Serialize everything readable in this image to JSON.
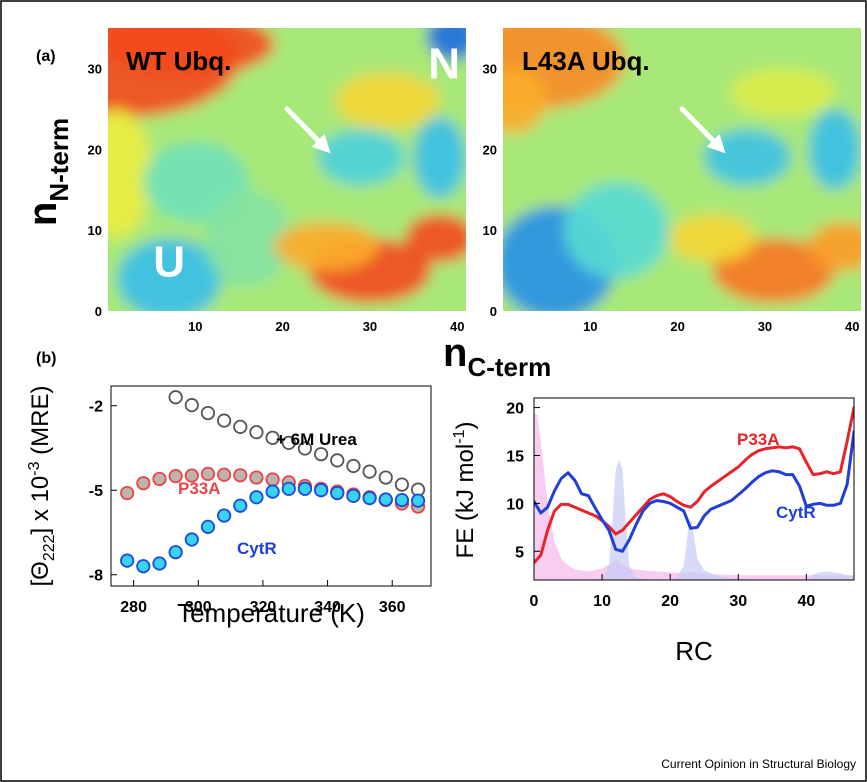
{
  "figure": {
    "credit": "Current Opinion in Structural Biology",
    "panel_a_label": "(a)",
    "panel_b_label": "(b)"
  },
  "chart_data": [
    {
      "id": "wt-map",
      "type": "heatmap",
      "title": "WT Ubq.",
      "xlabel": "n",
      "xlabel_sub": "C-term",
      "ylabel": "n",
      "ylabel_sub": "N-term",
      "x_ticks": [
        10,
        20,
        30,
        40
      ],
      "y_ticks": [
        0,
        10,
        20,
        30
      ],
      "xlim": [
        0,
        41
      ],
      "ylim": [
        0,
        35
      ],
      "annotations": [
        {
          "text": "N",
          "x": 38.5,
          "y": 30.5
        },
        {
          "text": "U",
          "x": 7,
          "y": 6
        }
      ],
      "arrow": {
        "from": [
          20.5,
          25
        ],
        "to": [
          25.5,
          19.5
        ]
      },
      "colormap": [
        "#1e6fe0",
        "#30b6ec",
        "#5cdcd2",
        "#a8e878",
        "#f0ec3a",
        "#fca52a",
        "#f24b1e"
      ],
      "regions": [
        {
          "x": 2,
          "y": 31,
          "sx": 13,
          "sy": 7,
          "v": 1.0
        },
        {
          "x": 9,
          "y": 33,
          "sx": 10,
          "sy": 4,
          "v": 1.0
        },
        {
          "x": 1,
          "y": 17,
          "sx": 4,
          "sy": 8,
          "v": 0.65
        },
        {
          "x": 10,
          "y": 16,
          "sx": 6,
          "sy": 5,
          "v": 0.38
        },
        {
          "x": 7,
          "y": 4,
          "sx": 6,
          "sy": 5,
          "v": 0.2
        },
        {
          "x": 16,
          "y": 9,
          "sx": 5,
          "sy": 6,
          "v": 0.42
        },
        {
          "x": 29,
          "y": 19,
          "sx": 5,
          "sy": 3.5,
          "v": 0.28
        },
        {
          "x": 38,
          "y": 19,
          "sx": 3,
          "sy": 5,
          "v": 0.2
        },
        {
          "x": 39.5,
          "y": 34,
          "sx": 3,
          "sy": 3,
          "v": 0.0
        },
        {
          "x": 30,
          "y": 5,
          "sx": 7,
          "sy": 4,
          "v": 1.0
        },
        {
          "x": 38,
          "y": 9,
          "sx": 4,
          "sy": 3,
          "v": 1.0
        },
        {
          "x": 25,
          "y": 8,
          "sx": 6,
          "sy": 3,
          "v": 0.82
        },
        {
          "x": 32,
          "y": 26,
          "sx": 6,
          "sy": 3.5,
          "v": 0.72
        }
      ]
    },
    {
      "id": "l43a-map",
      "type": "heatmap",
      "title": "L43A Ubq.",
      "x_ticks": [
        10,
        20,
        30,
        40
      ],
      "y_ticks": [
        0,
        10,
        20,
        30
      ],
      "xlim": [
        0,
        41
      ],
      "ylim": [
        0,
        35
      ],
      "arrow": {
        "from": [
          20.5,
          25
        ],
        "to": [
          25.5,
          19.5
        ]
      },
      "colormap": [
        "#1e6fe0",
        "#30b6ec",
        "#5cdcd2",
        "#a8e878",
        "#f0ec3a",
        "#fca52a",
        "#f24b1e"
      ],
      "regions": [
        {
          "x": 4,
          "y": 31,
          "sx": 10,
          "sy": 6,
          "v": 0.88
        },
        {
          "x": 1,
          "y": 26,
          "sx": 4,
          "sy": 4,
          "v": 0.82
        },
        {
          "x": 6,
          "y": 6,
          "sx": 7,
          "sy": 7,
          "v": 0.08
        },
        {
          "x": 13,
          "y": 10,
          "sx": 6,
          "sy": 6,
          "v": 0.32
        },
        {
          "x": 28,
          "y": 19,
          "sx": 5,
          "sy": 3.5,
          "v": 0.22
        },
        {
          "x": 38,
          "y": 20,
          "sx": 3,
          "sy": 5,
          "v": 0.2
        },
        {
          "x": 31,
          "y": 5,
          "sx": 7,
          "sy": 4,
          "v": 0.92
        },
        {
          "x": 39,
          "y": 8,
          "sx": 4,
          "sy": 3,
          "v": 0.85
        },
        {
          "x": 24,
          "y": 9,
          "sx": 5,
          "sy": 3,
          "v": 0.72
        },
        {
          "x": 32,
          "y": 27,
          "sx": 6,
          "sy": 3,
          "v": 0.62
        }
      ]
    },
    {
      "id": "cd-melt",
      "type": "scatter",
      "xlabel": "Temperature (K)",
      "ylabel": "[Θ222] x 10-3 (MRE)",
      "x_ticks": [
        280,
        300,
        320,
        340,
        360
      ],
      "y_ticks": [
        -2,
        -5,
        -8
      ],
      "xlim": [
        273,
        372
      ],
      "ylim": [
        -8.4,
        -1.3
      ],
      "series": [
        {
          "name": "+ 6M Urea",
          "color": "#555555",
          "fill": "#ffffff",
          "x": [
            293,
            298,
            303,
            308,
            313,
            318,
            323,
            328,
            333,
            338,
            343,
            348,
            353,
            358,
            363,
            368
          ],
          "y": [
            -1.7,
            -1.98,
            -2.26,
            -2.53,
            -2.75,
            -2.94,
            -3.14,
            -3.32,
            -3.52,
            -3.72,
            -3.94,
            -4.14,
            -4.34,
            -4.55,
            -4.8,
            -4.98
          ]
        },
        {
          "name": "P33A",
          "color": "#e8454a",
          "fill": "#bdb5ac",
          "x": [
            278,
            283,
            288,
            293,
            298,
            303,
            308,
            313,
            318,
            323,
            328,
            333,
            338,
            343,
            348,
            353,
            358,
            363,
            368
          ],
          "y": [
            -5.1,
            -4.75,
            -4.6,
            -4.5,
            -4.48,
            -4.42,
            -4.45,
            -4.47,
            -4.55,
            -4.62,
            -4.72,
            -4.85,
            -4.95,
            -5.05,
            -5.15,
            -5.25,
            -5.35,
            -5.47,
            -5.58
          ]
        },
        {
          "name": "CytR",
          "color": "#2049d8",
          "fill": "#36d4f2",
          "x": [
            278,
            283,
            288,
            293,
            298,
            303,
            308,
            313,
            318,
            323,
            328,
            333,
            338,
            343,
            348,
            353,
            358,
            363,
            368
          ],
          "y": [
            -7.5,
            -7.7,
            -7.6,
            -7.2,
            -6.75,
            -6.3,
            -5.9,
            -5.55,
            -5.25,
            -5.05,
            -4.95,
            -4.95,
            -5.0,
            -5.1,
            -5.2,
            -5.28,
            -5.33,
            -5.35,
            -5.37
          ]
        }
      ]
    },
    {
      "id": "free-energy",
      "type": "line",
      "xlabel": "RC",
      "ylabel": "FE (kJ mol-1)",
      "x_ticks": [
        0,
        10,
        20,
        30,
        40
      ],
      "y_ticks": [
        5,
        10,
        15,
        20
      ],
      "xlim": [
        0,
        47
      ],
      "ylim": [
        2,
        21
      ],
      "series": [
        {
          "name": "P33A",
          "color": "#e8232a",
          "x": [
            0,
            1,
            2,
            3,
            4,
            5,
            6,
            7,
            8,
            9,
            10,
            11,
            12,
            13,
            14,
            15,
            16,
            17,
            18,
            19,
            20,
            21,
            22,
            23,
            24,
            25,
            26,
            27,
            28,
            29,
            30,
            31,
            32,
            33,
            34,
            35,
            36,
            37,
            38,
            39,
            40,
            41,
            42,
            43,
            44,
            45,
            46,
            47
          ],
          "y": [
            3.8,
            4.6,
            7.2,
            9.2,
            9.9,
            9.9,
            9.6,
            9.3,
            9.0,
            8.7,
            8.2,
            7.6,
            6.8,
            7.2,
            8.0,
            8.8,
            9.6,
            10.4,
            10.8,
            11.0,
            10.7,
            10.2,
            9.8,
            9.6,
            10.2,
            11.2,
            11.8,
            12.3,
            12.8,
            13.3,
            13.8,
            14.5,
            15.1,
            15.5,
            15.7,
            15.8,
            15.9,
            15.8,
            15.9,
            15.7,
            14.3,
            13.0,
            13.1,
            13.3,
            13.1,
            13.3,
            16.5,
            20.0
          ]
        },
        {
          "name": "CytR",
          "color": "#1f3fd6",
          "x": [
            0,
            1,
            2,
            3,
            4,
            5,
            6,
            7,
            8,
            9,
            10,
            11,
            12,
            13,
            14,
            15,
            16,
            17,
            18,
            19,
            20,
            21,
            22,
            23,
            24,
            25,
            26,
            27,
            28,
            29,
            30,
            31,
            32,
            33,
            34,
            35,
            36,
            37,
            38,
            39,
            40,
            41,
            42,
            43,
            44,
            45,
            46,
            47
          ],
          "y": [
            10.2,
            9.0,
            9.6,
            11.3,
            12.6,
            13.2,
            12.4,
            11.0,
            10.8,
            9.5,
            8.3,
            7.2,
            5.2,
            5.0,
            6.2,
            7.8,
            9.2,
            10.0,
            10.3,
            10.2,
            10.0,
            9.6,
            9.2,
            7.4,
            7.5,
            8.7,
            9.4,
            9.7,
            10.0,
            10.3,
            10.9,
            11.5,
            12.2,
            12.8,
            13.2,
            13.4,
            13.3,
            13.0,
            13.0,
            11.8,
            9.7,
            9.9,
            10.0,
            9.8,
            9.8,
            10.0,
            12.0,
            17.5
          ]
        }
      ],
      "shading": [
        {
          "color": "#f5b8e8",
          "x": [
            0,
            0.5,
            1,
            2,
            3,
            4,
            5,
            6,
            8,
            10,
            11,
            12,
            13,
            14,
            16,
            18,
            20,
            22,
            23,
            24,
            26,
            30,
            35,
            40,
            42,
            44,
            46,
            47
          ],
          "y": [
            19.5,
            19.2,
            16.5,
            10.0,
            6.0,
            4.2,
            3.5,
            3.1,
            2.9,
            3.2,
            3.6,
            4.2,
            3.6,
            3.2,
            3.0,
            2.9,
            2.8,
            2.7,
            2.9,
            2.7,
            2.6,
            2.5,
            2.5,
            2.5,
            2.5,
            2.5,
            2.5,
            2.5
          ]
        },
        {
          "color": "#c8ccf5",
          "x": [
            9,
            10,
            11,
            11.5,
            12,
            12.5,
            13,
            13.5,
            14,
            15,
            17,
            20,
            21,
            22,
            22.5,
            23,
            23.5,
            24,
            25,
            27,
            30,
            35,
            40,
            41,
            42,
            43,
            44,
            45,
            46,
            47
          ],
          "y": [
            2.0,
            2.2,
            3.5,
            8.0,
            13.5,
            14.6,
            13.5,
            8.0,
            3.5,
            2.3,
            2.0,
            2.0,
            2.3,
            3.5,
            6.5,
            8.6,
            6.5,
            4.2,
            3.0,
            2.4,
            2.1,
            2.0,
            2.0,
            2.6,
            2.8,
            2.9,
            2.8,
            2.7,
            2.5,
            2.4
          ]
        }
      ],
      "labels": [
        {
          "text": "P33A",
          "series": "P33A"
        },
        {
          "text": "CytR",
          "series": "CytR"
        }
      ]
    }
  ]
}
